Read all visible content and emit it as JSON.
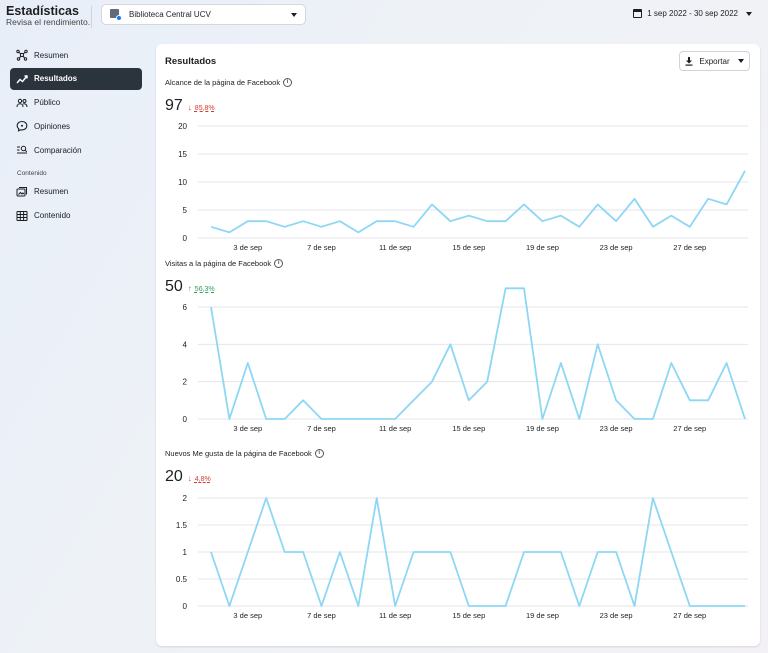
{
  "header": {
    "title": "Estadísticas",
    "subtitle": "Revisa el rendimiento.",
    "page_select": "Biblioteca Central UCV",
    "date_range": "1 sep 2022 - 30 sep 2022"
  },
  "sidebar": {
    "items": [
      {
        "label": "Resumen",
        "icon": "network-icon",
        "active": false
      },
      {
        "label": "Resultados",
        "icon": "trend-icon",
        "active": true
      },
      {
        "label": "Público",
        "icon": "people-icon",
        "active": false
      },
      {
        "label": "Opiniones",
        "icon": "chat-bubble-icon",
        "active": false
      },
      {
        "label": "Comparación",
        "icon": "compare-icon",
        "active": false
      }
    ],
    "section_label": "Contenido",
    "content_items": [
      {
        "label": "Resumen",
        "icon": "media-icon",
        "active": false
      },
      {
        "label": "Contenido",
        "icon": "grid-icon",
        "active": false
      }
    ]
  },
  "main": {
    "title": "Resultados",
    "export_label": "Exportar"
  },
  "colors": {
    "line": "#8dd7f5",
    "active_bg": "#2b333d",
    "down": "#d63c2b",
    "up": "#2f9d5a"
  },
  "chart_data": [
    {
      "type": "line",
      "title": "Alcance de la página de Facebook",
      "total": "97",
      "delta": "85,8%",
      "delta_direction": "down",
      "x_tick_labels": [
        "3 de sep",
        "7 de sep",
        "11 de sep",
        "15 de sep",
        "19 de sep",
        "23 de sep",
        "27 de sep"
      ],
      "x_tick_days": [
        3,
        7,
        11,
        15,
        19,
        23,
        27
      ],
      "x": [
        1,
        2,
        3,
        4,
        5,
        6,
        7,
        8,
        9,
        10,
        11,
        12,
        13,
        14,
        15,
        16,
        17,
        18,
        19,
        20,
        21,
        22,
        23,
        24,
        25,
        26,
        27,
        28,
        29,
        30
      ],
      "values": [
        2,
        1,
        3,
        3,
        2,
        3,
        2,
        3,
        1,
        3,
        3,
        2,
        6,
        3,
        4,
        3,
        3,
        6,
        3,
        4,
        2,
        6,
        3,
        7,
        2,
        4,
        2,
        7,
        6,
        12
      ],
      "y_ticks": [
        0,
        5,
        10,
        15,
        20
      ],
      "ylim": [
        0,
        20
      ],
      "grid": true
    },
    {
      "type": "line",
      "title": "Visitas a la página de Facebook",
      "total": "50",
      "delta": "56,3%",
      "delta_direction": "up",
      "x_tick_labels": [
        "3 de sep",
        "7 de sep",
        "11 de sep",
        "15 de sep",
        "19 de sep",
        "23 de sep",
        "27 de sep"
      ],
      "x_tick_days": [
        3,
        7,
        11,
        15,
        19,
        23,
        27
      ],
      "x": [
        1,
        2,
        3,
        4,
        5,
        6,
        7,
        8,
        9,
        10,
        11,
        12,
        13,
        14,
        15,
        16,
        17,
        18,
        19,
        20,
        21,
        22,
        23,
        24,
        25,
        26,
        27,
        28,
        29,
        30
      ],
      "values": [
        6,
        0,
        3,
        0,
        0,
        1,
        0,
        0,
        0,
        0,
        0,
        1,
        2,
        4,
        1,
        2,
        7,
        7,
        0,
        3,
        0,
        4,
        1,
        0,
        0,
        3,
        1,
        1,
        3,
        0
      ],
      "y_ticks": [
        0,
        2,
        4,
        6
      ],
      "ylim": [
        0,
        7
      ],
      "grid": true
    },
    {
      "type": "line",
      "title": "Nuevos Me gusta de la página de Facebook",
      "total": "20",
      "delta": "4,8%",
      "delta_direction": "down",
      "x_tick_labels": [
        "3 de sep",
        "7 de sep",
        "11 de sep",
        "15 de sep",
        "19 de sep",
        "23 de sep",
        "27 de sep"
      ],
      "x_tick_days": [
        3,
        7,
        11,
        15,
        19,
        23,
        27
      ],
      "x": [
        1,
        2,
        3,
        4,
        5,
        6,
        7,
        8,
        9,
        10,
        11,
        12,
        13,
        14,
        15,
        16,
        17,
        18,
        19,
        20,
        21,
        22,
        23,
        24,
        25,
        26,
        27,
        28,
        29,
        30
      ],
      "values": [
        1,
        0,
        1,
        2,
        1,
        1,
        0,
        1,
        0,
        2,
        0,
        1,
        1,
        1,
        0,
        0,
        0,
        1,
        1,
        1,
        0,
        1,
        1,
        0,
        2,
        1,
        0,
        0,
        0,
        0
      ],
      "y_ticks": [
        0,
        0.5,
        1,
        1.5,
        2
      ],
      "y_tick_labels": [
        "0",
        "0.5",
        "1",
        "1.5",
        "2"
      ],
      "ylim": [
        0,
        2
      ],
      "grid": true
    }
  ]
}
